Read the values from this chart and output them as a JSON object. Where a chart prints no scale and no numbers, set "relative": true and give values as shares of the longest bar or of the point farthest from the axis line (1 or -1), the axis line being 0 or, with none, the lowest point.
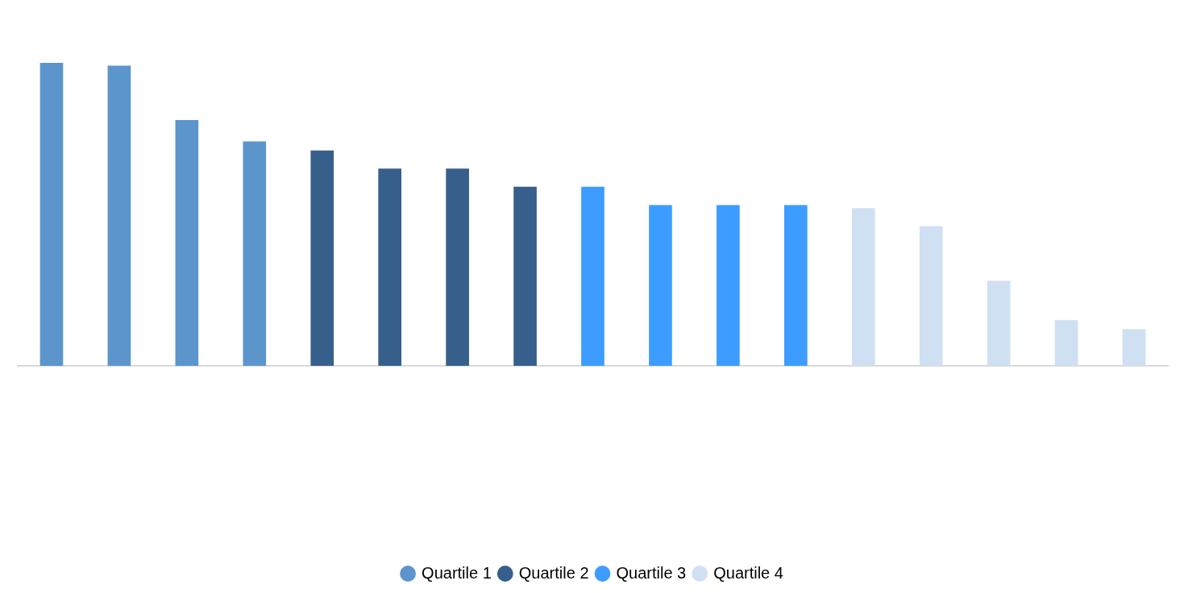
{
  "chart_data": {
    "type": "bar",
    "relative": true,
    "categories": [
      null,
      null,
      null,
      null,
      null,
      null,
      null,
      null,
      null,
      null,
      null,
      null,
      null,
      null,
      null,
      null,
      null
    ],
    "series": [
      {
        "name": "Quartile 1",
        "color": "#5b95cc",
        "values": [
          1,
          0.99,
          0.81,
          0.74,
          null,
          null,
          null,
          null,
          null,
          null,
          null,
          null,
          null,
          null,
          null,
          null,
          null
        ]
      },
      {
        "name": "Quartile 2",
        "color": "#365f8c",
        "values": [
          null,
          null,
          null,
          null,
          0.71,
          0.65,
          0.65,
          0.59,
          null,
          null,
          null,
          null,
          null,
          null,
          null,
          null,
          null
        ]
      },
      {
        "name": "Quartile 3",
        "color": "#3d9cff",
        "values": [
          null,
          null,
          null,
          null,
          null,
          null,
          null,
          null,
          0.59,
          0.53,
          0.53,
          0.53,
          null,
          null,
          null,
          null,
          null
        ]
      },
      {
        "name": "Quartile 4",
        "color": "#cfe0f2",
        "values": [
          null,
          null,
          null,
          null,
          null,
          null,
          null,
          null,
          null,
          null,
          null,
          null,
          0.52,
          0.46,
          0.28,
          0.15,
          0.12
        ]
      }
    ],
    "stacked": true,
    "legend": "bottom",
    "grid": false
  }
}
